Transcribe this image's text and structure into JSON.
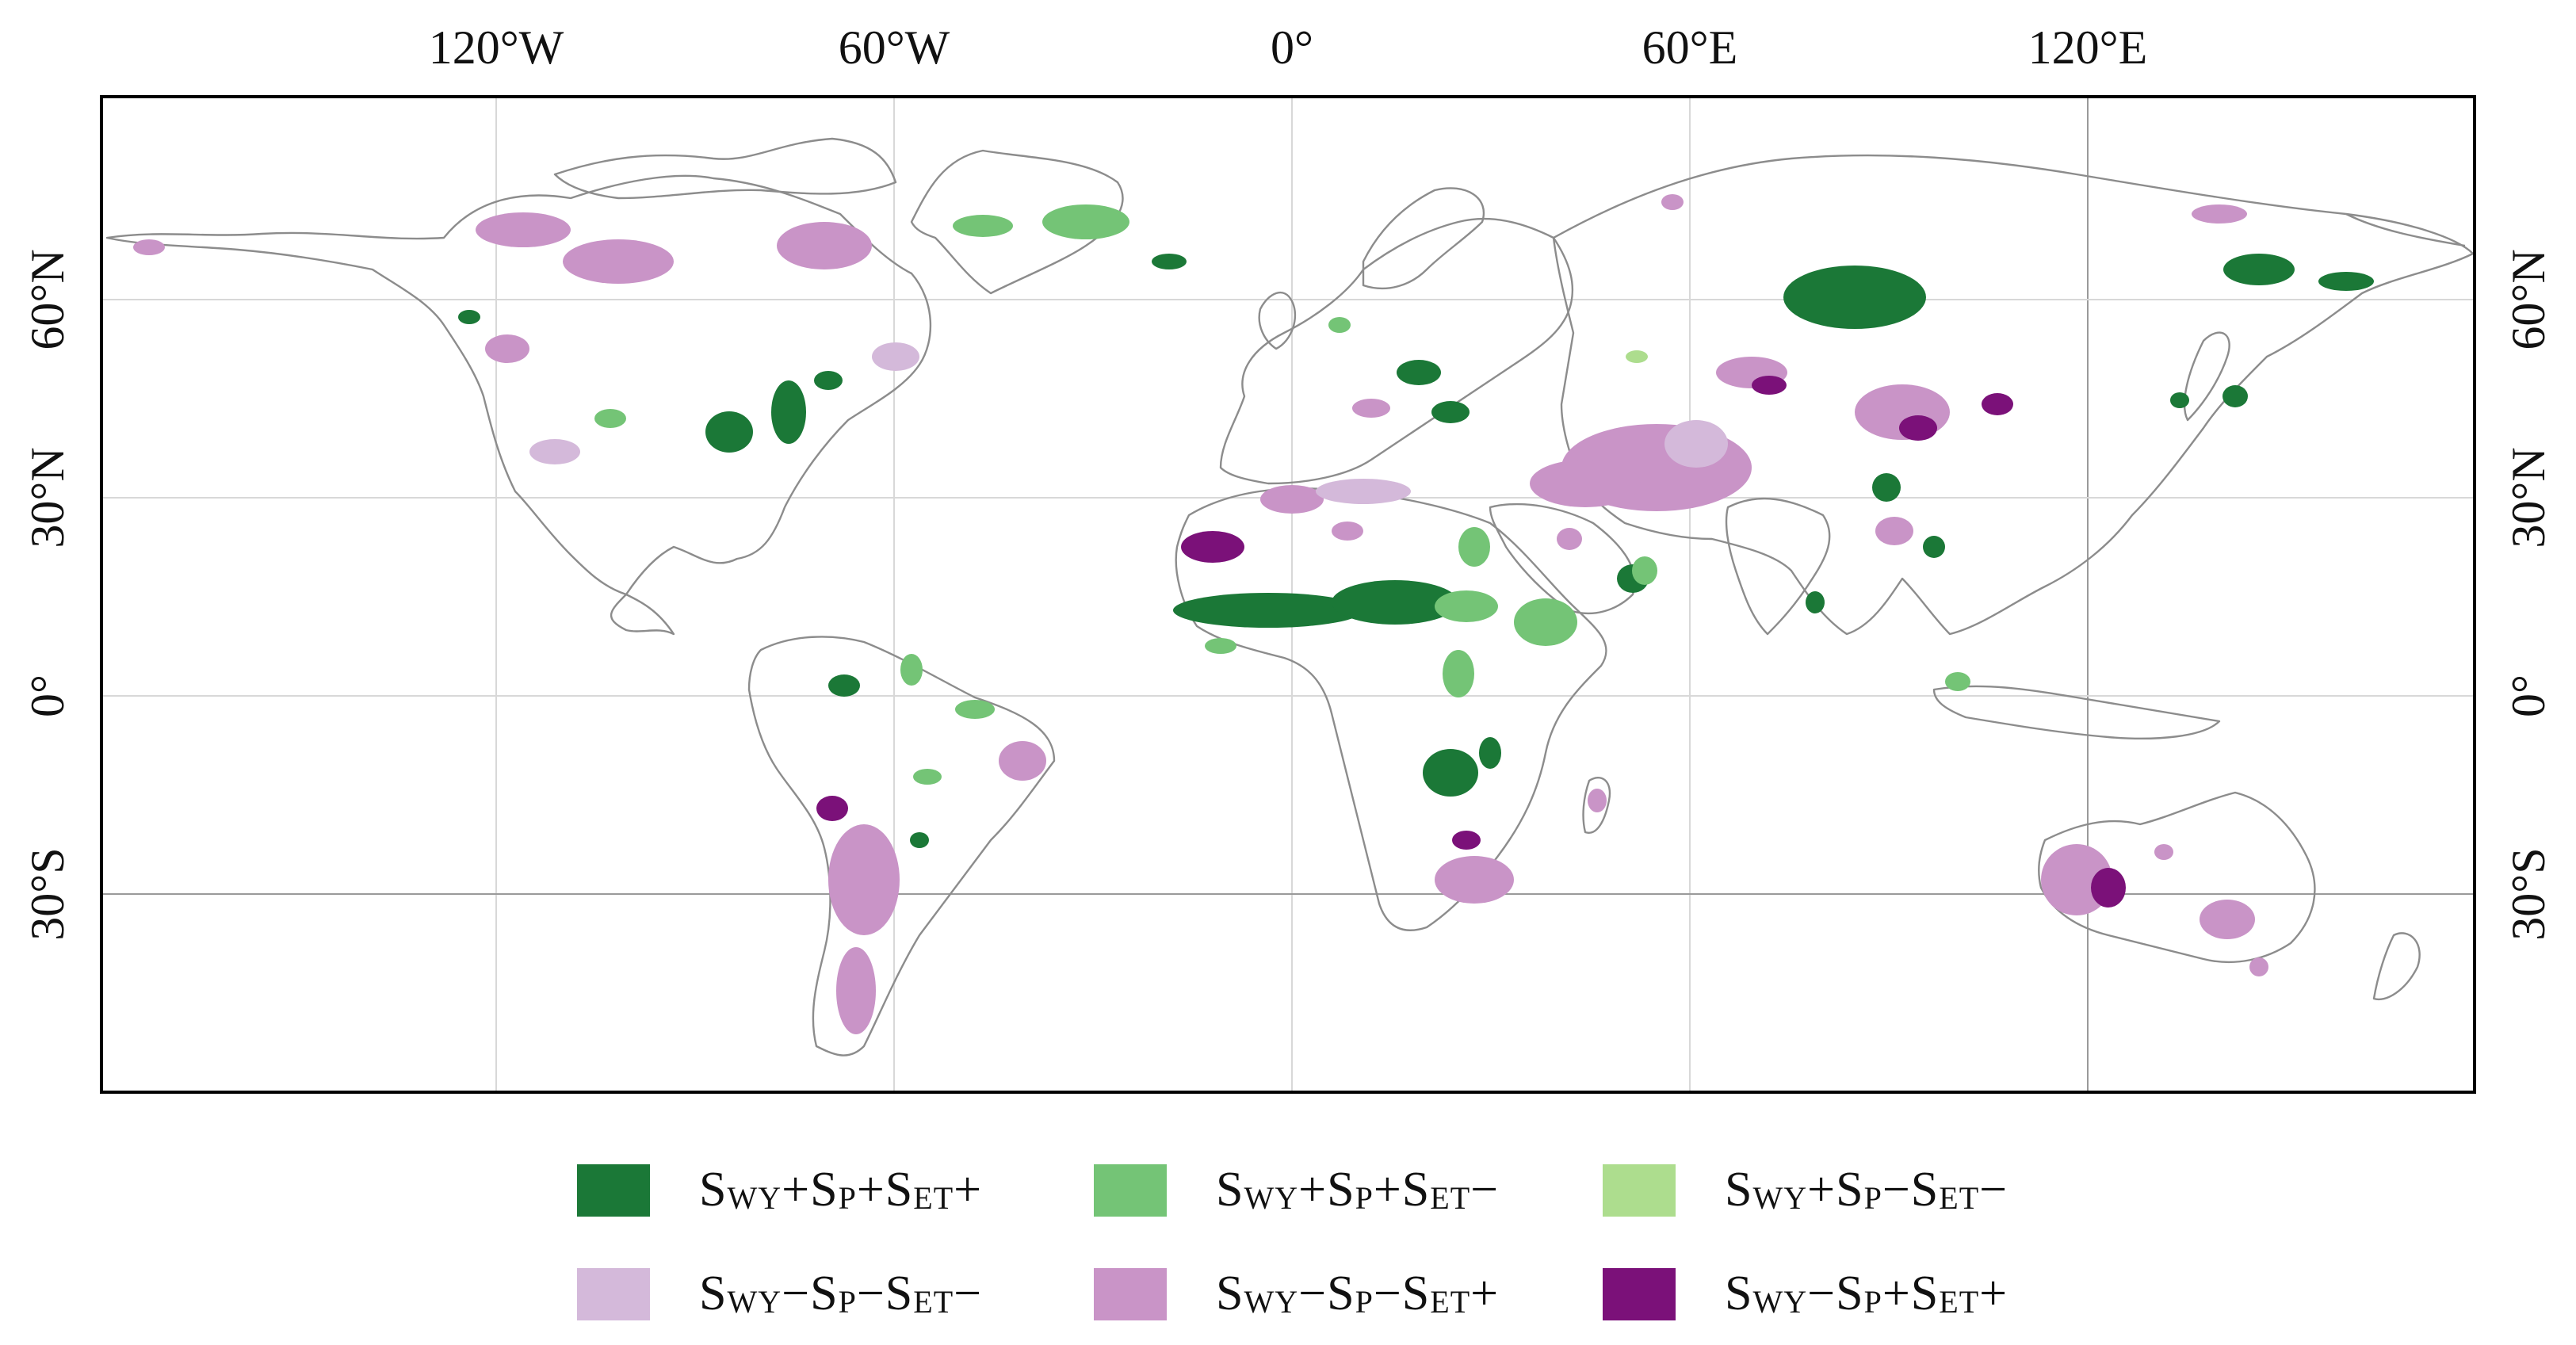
{
  "map": {
    "top_labels": [
      "120°W",
      "60°W",
      "0°",
      "60°E",
      "120°E"
    ],
    "left_labels": [
      "60°N",
      "30°N",
      "0°",
      "30°S"
    ],
    "right_labels": [
      "60°N",
      "30°N",
      "0°",
      "30°S"
    ]
  },
  "colors": {
    "dark_green": "#1b7837",
    "medium_green": "#74c476",
    "light_green": "#addd8e",
    "light_purple": "#d4b9da",
    "medium_purple": "#c994c7",
    "dark_purple": "#7b1179"
  },
  "legend": [
    {
      "color_key": "dark_green",
      "parts": [
        [
          "S",
          "WY",
          "+"
        ],
        [
          "S",
          "P",
          "+"
        ],
        [
          "S",
          "ET",
          "+"
        ]
      ]
    },
    {
      "color_key": "medium_green",
      "parts": [
        [
          "S",
          "WY",
          "+"
        ],
        [
          "S",
          "P",
          "+"
        ],
        [
          "S",
          "ET",
          "−"
        ]
      ]
    },
    {
      "color_key": "light_green",
      "parts": [
        [
          "S",
          "WY",
          "+"
        ],
        [
          "S",
          "P",
          "−"
        ],
        [
          "S",
          "ET",
          "−"
        ]
      ]
    },
    {
      "color_key": "light_purple",
      "parts": [
        [
          "S",
          "WY",
          "−"
        ],
        [
          "S",
          "P",
          "−"
        ],
        [
          "S",
          "ET",
          "−"
        ]
      ]
    },
    {
      "color_key": "medium_purple",
      "parts": [
        [
          "S",
          "WY",
          "−"
        ],
        [
          "S",
          "P",
          "−"
        ],
        [
          "S",
          "ET",
          "+"
        ]
      ]
    },
    {
      "color_key": "dark_purple",
      "parts": [
        [
          "S",
          "WY",
          "−"
        ],
        [
          "S",
          "P",
          "+"
        ],
        [
          "S",
          "ET",
          "+"
        ]
      ]
    }
  ]
}
